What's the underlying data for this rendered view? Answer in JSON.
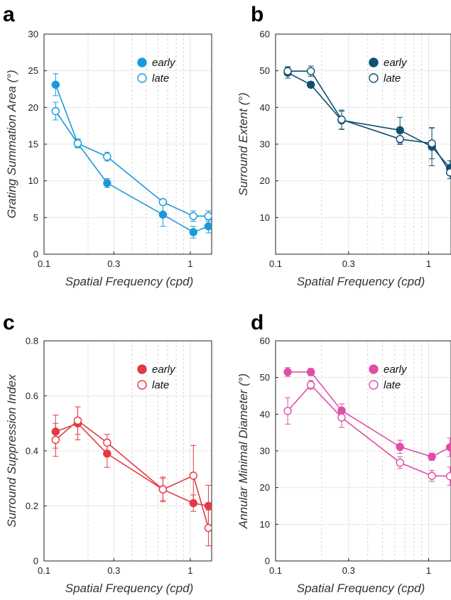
{
  "figure": {
    "panel_letters": [
      "a",
      "b",
      "c",
      "d"
    ]
  },
  "chart_data": [
    {
      "type": "line",
      "panel": "a",
      "color": "#1a9ad9",
      "xlabel": "Spatial Frequency (cpd)",
      "ylabel": "Grating Summation Area (°)",
      "xscale": "log",
      "xlim": [
        0.1,
        1.4
      ],
      "ylim": [
        0,
        30
      ],
      "xticks": [
        0.1,
        0.3,
        1
      ],
      "xtick_labels": [
        "0.1",
        "0.3",
        "1"
      ],
      "yticks": [
        0,
        5,
        10,
        15,
        20,
        25,
        30
      ],
      "grid": true,
      "legend_position": "top-right",
      "x": [
        0.12,
        0.17,
        0.27,
        0.65,
        1.05,
        1.33
      ],
      "series": [
        {
          "name": "early",
          "marker": "filled",
          "values": [
            23.1,
            15.1,
            9.7,
            5.4,
            3.0,
            3.8
          ],
          "errors": [
            1.5,
            0.6,
            0.6,
            1.6,
            0.8,
            0.9
          ]
        },
        {
          "name": "late",
          "marker": "open",
          "values": [
            19.5,
            15.1,
            13.3,
            7.1,
            5.2,
            5.2
          ],
          "errors": [
            1.2,
            0.5,
            0.6,
            0.4,
            0.7,
            0.7
          ]
        }
      ]
    },
    {
      "type": "line",
      "panel": "b",
      "color": "#0f5070",
      "xlabel": "Spatial Frequency (cpd)",
      "ylabel": "Surround Extent (°)",
      "xscale": "log",
      "xlim": [
        0.1,
        1.4
      ],
      "ylim": [
        0,
        60
      ],
      "xticks": [
        0.1,
        0.3,
        1
      ],
      "xtick_labels": [
        "0.1",
        "0.3",
        "1"
      ],
      "yticks": [
        10,
        20,
        30,
        40,
        50,
        60
      ],
      "grid": true,
      "legend_position": "top-right",
      "x": [
        0.12,
        0.17,
        0.27,
        0.65,
        1.05,
        1.38
      ],
      "series": [
        {
          "name": "early",
          "marker": "filled",
          "values": [
            49.5,
            46.2,
            36.5,
            33.8,
            29.3,
            23.5
          ],
          "errors": [
            1.5,
            0.8,
            2.5,
            3.5,
            5.2,
            2.0
          ]
        },
        {
          "name": "late",
          "marker": "open",
          "values": [
            49.9,
            49.9,
            36.7,
            31.4,
            30.2,
            22.3
          ],
          "errors": [
            1.2,
            1.4,
            2.6,
            1.5,
            4.2,
            1.7
          ]
        }
      ]
    },
    {
      "type": "line",
      "panel": "c",
      "color": "#e23a43",
      "xlabel": "Spatial Frequency (cpd)",
      "ylabel": "Surround Suppression Index",
      "xscale": "log",
      "xlim": [
        0.1,
        1.4
      ],
      "ylim": [
        0,
        0.8
      ],
      "xticks": [
        0.1,
        0.3,
        1
      ],
      "xtick_labels": [
        "0.1",
        "0.3",
        "1"
      ],
      "yticks": [
        0,
        0.2,
        0.4,
        0.6,
        0.8
      ],
      "ytick_labels": [
        "0",
        "0.2",
        "0.4",
        "0.6",
        "0.8"
      ],
      "grid": true,
      "legend_position": "top-right",
      "x": [
        0.12,
        0.17,
        0.27,
        0.65,
        1.05,
        1.33
      ],
      "series": [
        {
          "name": "early",
          "marker": "filled",
          "values": [
            0.47,
            0.5,
            0.39,
            0.26,
            0.21,
            0.2
          ],
          "errors": [
            0.06,
            0.06,
            0.05,
            0.04,
            0.03,
            0.075
          ]
        },
        {
          "name": "late",
          "marker": "open",
          "values": [
            0.44,
            0.51,
            0.43,
            0.26,
            0.31,
            0.12
          ],
          "errors": [
            0.06,
            0.05,
            0.03,
            0.045,
            0.11,
            0.065
          ]
        }
      ]
    },
    {
      "type": "line",
      "panel": "d",
      "color": "#e04da6",
      "xlabel": "Spatial Frequency (cpd)",
      "ylabel": "Annular Minimal Diameter (°)",
      "xscale": "log",
      "xlim": [
        0.1,
        1.4
      ],
      "ylim": [
        0,
        60
      ],
      "xticks": [
        0.1,
        0.3,
        1
      ],
      "xtick_labels": [
        "0.1",
        "0.3",
        "1"
      ],
      "yticks": [
        0,
        10,
        20,
        30,
        40,
        50,
        60
      ],
      "grid": true,
      "legend_position": "top-right",
      "x": [
        0.12,
        0.17,
        0.27,
        0.65,
        1.05,
        1.38
      ],
      "series": [
        {
          "name": "early",
          "marker": "filled",
          "values": [
            51.5,
            51.5,
            41.0,
            31.1,
            28.4,
            31.0
          ],
          "errors": [
            1.2,
            1.0,
            1.8,
            1.8,
            1.0,
            2.5
          ]
        },
        {
          "name": "late",
          "marker": "open",
          "values": [
            40.9,
            48.0,
            39.1,
            26.8,
            23.2,
            23.1
          ],
          "errors": [
            3.6,
            1.2,
            2.7,
            1.6,
            1.5,
            2.5
          ]
        }
      ]
    }
  ]
}
